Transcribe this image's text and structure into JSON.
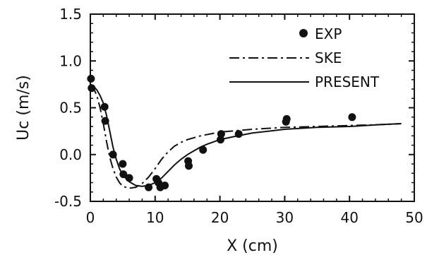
{
  "chart_data": {
    "type": "line",
    "title": "",
    "xlabel": "X (cm)",
    "ylabel": "Uc (m/s)",
    "xlim": [
      0,
      50
    ],
    "ylim": [
      -0.5,
      1.5
    ],
    "xticks": [
      0,
      10,
      20,
      30,
      40,
      50
    ],
    "yticks": [
      -0.5,
      0.0,
      0.5,
      1.0,
      1.5
    ],
    "xtick_labels": [
      "0",
      "10",
      "20",
      "30",
      "40",
      "50"
    ],
    "ytick_labels": [
      "-0.5",
      "0.0",
      "0.5",
      "1.0",
      "1.5"
    ],
    "grid": false,
    "legend_position": "top-right",
    "series": [
      {
        "name": "EXP",
        "style": "markers",
        "x": [
          0.1,
          0.2,
          2.2,
          2.3,
          3.5,
          5.0,
          5.1,
          6.0,
          9.0,
          10.2,
          10.5,
          10.8,
          11.5,
          15.1,
          15.2,
          17.4,
          20.1,
          20.2,
          22.9,
          30.2,
          30.3,
          40.4
        ],
        "y": [
          0.81,
          0.71,
          0.51,
          0.36,
          0.0,
          -0.1,
          -0.21,
          -0.25,
          -0.35,
          -0.26,
          -0.3,
          -0.35,
          -0.33,
          -0.07,
          -0.12,
          0.05,
          0.16,
          0.22,
          0.22,
          0.35,
          0.38,
          0.4
        ]
      },
      {
        "name": "SKE",
        "style": "dash-dot",
        "x": [
          0,
          0.5,
          1.0,
          1.5,
          2.0,
          2.5,
          3.0,
          3.5,
          4.0,
          4.5,
          5.0,
          6.0,
          7.0,
          8.0,
          9.0,
          10.0,
          11.0,
          12.0,
          13.0,
          14.0,
          15.0,
          17.0,
          20.0,
          25.0,
          30.0,
          35.0,
          40.0,
          45.0,
          48.0
        ],
        "y": [
          0.73,
          0.71,
          0.63,
          0.5,
          0.33,
          0.14,
          -0.03,
          -0.15,
          -0.24,
          -0.3,
          -0.34,
          -0.36,
          -0.35,
          -0.31,
          -0.24,
          -0.15,
          -0.05,
          0.03,
          0.09,
          0.13,
          0.16,
          0.2,
          0.24,
          0.27,
          0.29,
          0.3,
          0.31,
          0.32,
          0.33
        ]
      },
      {
        "name": "PRESENT",
        "style": "solid",
        "x": [
          0,
          0.5,
          1.0,
          1.5,
          2.0,
          2.5,
          3.0,
          3.5,
          4.0,
          4.5,
          5.0,
          6.0,
          7.0,
          8.0,
          9.0,
          10.0,
          11.0,
          12.0,
          13.0,
          14.0,
          15.0,
          16.0,
          17.0,
          18.0,
          20.0,
          22.0,
          25.0,
          30.0,
          35.0,
          40.0,
          45.0,
          48.0
        ],
        "y": [
          0.75,
          0.73,
          0.69,
          0.63,
          0.55,
          0.42,
          0.25,
          0.08,
          -0.05,
          -0.15,
          -0.22,
          -0.29,
          -0.33,
          -0.34,
          -0.33,
          -0.3,
          -0.25,
          -0.18,
          -0.11,
          -0.05,
          0.0,
          0.04,
          0.08,
          0.11,
          0.16,
          0.19,
          0.23,
          0.27,
          0.29,
          0.3,
          0.32,
          0.33
        ]
      }
    ]
  }
}
